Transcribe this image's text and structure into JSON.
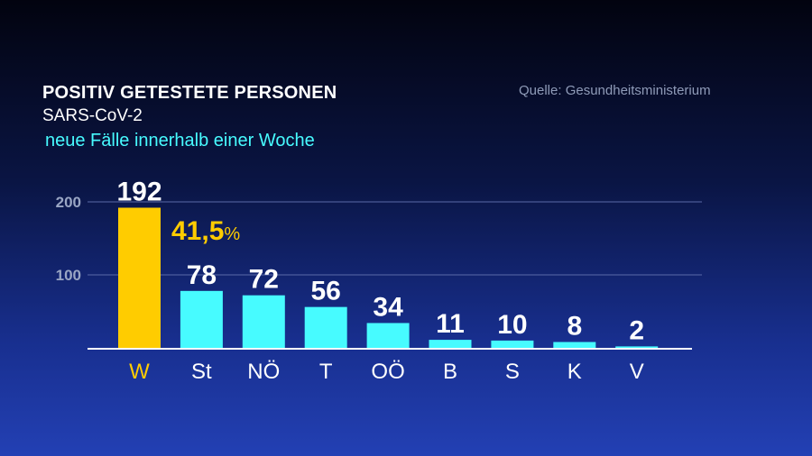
{
  "header": {
    "title": "POSITIV GETESTETE PERSONEN",
    "subtitle": "SARS-CoV-2",
    "subtitle2": "neue Fälle innerhalb einer Woche",
    "source": "Quelle: Gesundheitsministerium"
  },
  "colors": {
    "highlight": "#ffcc00",
    "bar": "#47fbff",
    "subtitle2": "#47fbff",
    "axis_text": "#9aa6c4",
    "grid": "#5a6aa8"
  },
  "chart_data": {
    "type": "bar",
    "categories": [
      "W",
      "St",
      "NÖ",
      "T",
      "OÖ",
      "B",
      "S",
      "K",
      "V"
    ],
    "values": [
      192,
      78,
      72,
      56,
      34,
      11,
      10,
      8,
      2
    ],
    "value_labels": [
      "192",
      "78",
      "72",
      "56",
      "34",
      "11",
      "10",
      "8",
      "2"
    ],
    "highlight_index": 0,
    "annotation": {
      "value": "41,5",
      "unit": "%"
    },
    "yticks": [
      100,
      200
    ],
    "ytick_labels": [
      "100",
      "200"
    ],
    "ylim": [
      0,
      200
    ],
    "grid": true
  }
}
